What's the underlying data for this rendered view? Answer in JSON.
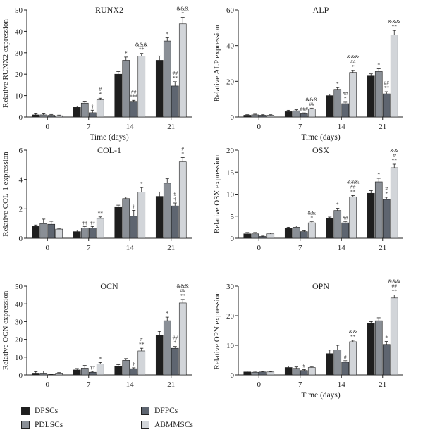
{
  "colors": {
    "DPSCs": "#1e1e1e",
    "PDLSCs": "#8a8f96",
    "DFPCs": "#5e6570",
    "ABMMSCs": "#d2d5d9"
  },
  "legend": {
    "items": [
      {
        "key": "DPSCs",
        "label": "DPSCs"
      },
      {
        "key": "PDLSCs",
        "label": "PDLSCs"
      },
      {
        "key": "DFPCs",
        "label": "DFPCs"
      },
      {
        "key": "ABMMSCs",
        "label": "ABMMSCs"
      }
    ]
  },
  "chart_data": [
    {
      "type": "bar",
      "title": "RUNX2",
      "xlabel": "Time (days)",
      "ylabel": "Relative RUNX2 expression",
      "categories": [
        "0",
        "7",
        "14",
        "21"
      ],
      "ylim": [
        0,
        50
      ],
      "yticks": [
        0,
        10,
        20,
        30,
        40,
        50
      ],
      "series": [
        {
          "name": "DPSCs",
          "values": [
            1.0,
            4.5,
            20.0,
            26.5
          ],
          "errors": [
            0.5,
            0.6,
            1.2,
            2.0
          ],
          "annotations": [
            "",
            "",
            "",
            ""
          ]
        },
        {
          "name": "PDLSCs",
          "values": [
            1.0,
            6.5,
            26.5,
            35.5
          ],
          "errors": [
            0.5,
            0.6,
            1.5,
            1.5
          ],
          "annotations": [
            "",
            "",
            "*",
            "*"
          ]
        },
        {
          "name": "DFPCs",
          "values": [
            0.8,
            2.0,
            7.0,
            14.5
          ],
          "errors": [
            0.4,
            1.2,
            0.8,
            2.0
          ],
          "annotations": [
            "",
            "†",
            "##\n***",
            "##\n**"
          ]
        },
        {
          "name": "ABMMSCs",
          "values": [
            0.6,
            8.0,
            28.5,
            43.5
          ],
          "errors": [
            0.3,
            0.8,
            1.2,
            3.0
          ],
          "annotations": [
            "",
            "#\n*",
            "&&&\n**",
            "&&&\n*"
          ]
        }
      ]
    },
    {
      "type": "bar",
      "title": "ALP",
      "xlabel": "Time (days)",
      "ylabel": "Relative ALP expression",
      "categories": [
        "0",
        "7",
        "14",
        "21"
      ],
      "ylim": [
        0,
        60
      ],
      "yticks": [
        0,
        20,
        40,
        60
      ],
      "series": [
        {
          "name": "DPSCs",
          "values": [
            1.0,
            3.0,
            12.0,
            23.0
          ],
          "errors": [
            0.3,
            0.8,
            0.8,
            1.2
          ],
          "annotations": [
            "",
            "",
            "",
            ""
          ]
        },
        {
          "name": "PDLSCs",
          "values": [
            1.2,
            3.5,
            15.5,
            25.5
          ],
          "errors": [
            0.4,
            0.6,
            1.0,
            1.5
          ],
          "annotations": [
            "",
            "",
            "*",
            "*"
          ]
        },
        {
          "name": "DFPCs",
          "values": [
            1.0,
            1.8,
            7.5,
            13.0
          ],
          "errors": [
            0.3,
            0.5,
            0.8,
            1.2
          ],
          "annotations": [
            "",
            "###",
            "##\n*",
            "##\n**"
          ]
        },
        {
          "name": "ABMMSCs",
          "values": [
            1.0,
            4.5,
            25.0,
            46.0
          ],
          "errors": [
            0.3,
            0.5,
            1.0,
            2.5
          ],
          "annotations": [
            "",
            "&&&\n##",
            "&&&\n##\n*",
            "&&&\n**"
          ]
        }
      ]
    },
    {
      "type": "bar",
      "title": "COL-1",
      "xlabel": "",
      "ylabel": "Relative COL-1 expression",
      "categories": [
        "0",
        "7",
        "14",
        "21"
      ],
      "ylim": [
        0,
        6
      ],
      "yticks": [
        0,
        2,
        4,
        6
      ],
      "series": [
        {
          "name": "DPSCs",
          "values": [
            0.8,
            0.45,
            2.1,
            2.85
          ],
          "errors": [
            0.1,
            0.1,
            0.15,
            0.3
          ],
          "annotations": [
            "",
            "",
            "",
            ""
          ]
        },
        {
          "name": "PDLSCs",
          "values": [
            1.0,
            0.7,
            2.7,
            3.75
          ],
          "errors": [
            0.3,
            0.1,
            0.1,
            0.3
          ],
          "annotations": [
            "",
            "††",
            "",
            ""
          ]
        },
        {
          "name": "DFPCs",
          "values": [
            0.95,
            0.7,
            1.5,
            2.2
          ],
          "errors": [
            0.2,
            0.1,
            0.4,
            0.2
          ],
          "annotations": [
            "",
            "††",
            "†",
            "#\n†"
          ]
        },
        {
          "name": "ABMMSCs",
          "values": [
            0.62,
            1.35,
            3.15,
            5.2
          ],
          "errors": [
            0.05,
            0.1,
            0.3,
            0.3
          ],
          "annotations": [
            "",
            "**",
            "*",
            "#\n*"
          ]
        }
      ]
    },
    {
      "type": "bar",
      "title": "OSX",
      "xlabel": "",
      "ylabel": "Relative OSX expression",
      "categories": [
        "0",
        "7",
        "14",
        "21"
      ],
      "ylim": [
        0,
        20
      ],
      "yticks": [
        0,
        5,
        10,
        15,
        20
      ],
      "series": [
        {
          "name": "DPSCs",
          "values": [
            1.0,
            2.2,
            4.5,
            10.2
          ],
          "errors": [
            0.3,
            0.3,
            0.3,
            0.6
          ],
          "annotations": [
            "",
            "",
            "",
            ""
          ]
        },
        {
          "name": "PDLSCs",
          "values": [
            1.0,
            2.5,
            6.3,
            12.8
          ],
          "errors": [
            0.3,
            0.3,
            0.5,
            0.8
          ],
          "annotations": [
            "",
            "",
            "*",
            "*"
          ]
        },
        {
          "name": "DFPCs",
          "values": [
            0.4,
            1.5,
            3.5,
            8.8
          ],
          "errors": [
            0.1,
            0.2,
            0.3,
            0.5
          ],
          "annotations": [
            "",
            "",
            "##",
            "#\n*"
          ]
        },
        {
          "name": "ABMMSCs",
          "values": [
            1.0,
            3.5,
            9.4,
            16.0
          ],
          "errors": [
            0.2,
            0.3,
            0.3,
            0.8
          ],
          "annotations": [
            "",
            "&&\n*",
            "&&&\n##\n**",
            "&&\n#\n**"
          ]
        }
      ]
    },
    {
      "type": "bar",
      "title": "OCN",
      "xlabel": "",
      "ylabel": "Relative OCN expression",
      "categories": [
        "0",
        "7",
        "14",
        "21"
      ],
      "ylim": [
        0,
        50
      ],
      "yticks": [
        0,
        10,
        20,
        30,
        40,
        50
      ],
      "series": [
        {
          "name": "DPSCs",
          "values": [
            1.0,
            2.8,
            5.0,
            22.5
          ],
          "errors": [
            0.8,
            0.8,
            0.8,
            2.0
          ],
          "annotations": [
            "",
            "",
            "",
            ""
          ]
        },
        {
          "name": "PDLSCs",
          "values": [
            1.0,
            3.8,
            8.2,
            30.5
          ],
          "errors": [
            1.2,
            1.5,
            1.0,
            2.0
          ],
          "annotations": [
            "",
            "",
            "",
            "*"
          ]
        },
        {
          "name": "DFPCs",
          "values": [
            0.2,
            1.5,
            3.5,
            15.0
          ],
          "errors": [
            0.1,
            0.5,
            0.5,
            1.0
          ],
          "annotations": [
            "",
            "††",
            "†",
            "##\n*"
          ]
        },
        {
          "name": "ABMMSCs",
          "values": [
            1.0,
            6.2,
            13.5,
            40.5
          ],
          "errors": [
            0.3,
            0.8,
            1.5,
            2.0
          ],
          "annotations": [
            "",
            "*",
            "#\n**",
            "&&&\n##\n**"
          ]
        }
      ]
    },
    {
      "type": "bar",
      "title": "OPN",
      "xlabel": "Time (days)",
      "ylabel": "Relative OPN expression",
      "categories": [
        "0",
        "7",
        "14",
        "21"
      ],
      "ylim": [
        0,
        30
      ],
      "yticks": [
        0,
        10,
        20,
        30
      ],
      "series": [
        {
          "name": "DPSCs",
          "values": [
            1.0,
            2.5,
            7.2,
            17.5
          ],
          "errors": [
            0.3,
            0.5,
            1.2,
            0.5
          ],
          "annotations": [
            "",
            "",
            "",
            ""
          ]
        },
        {
          "name": "PDLSCs",
          "values": [
            0.9,
            2.2,
            8.5,
            18.3
          ],
          "errors": [
            0.3,
            0.5,
            1.5,
            1.0
          ],
          "annotations": [
            "",
            "",
            "",
            ""
          ]
        },
        {
          "name": "DFPCs",
          "values": [
            1.0,
            1.5,
            4.3,
            10.3
          ],
          "errors": [
            0.2,
            0.3,
            0.5,
            1.0
          ],
          "annotations": [
            "",
            "#",
            "#",
            "*"
          ]
        },
        {
          "name": "ABMMSCs",
          "values": [
            1.0,
            2.5,
            11.2,
            26.0
          ],
          "errors": [
            0.2,
            0.3,
            0.5,
            1.0
          ],
          "annotations": [
            "",
            "",
            "&&\n**",
            "&&&\n##\n**"
          ]
        }
      ]
    }
  ]
}
